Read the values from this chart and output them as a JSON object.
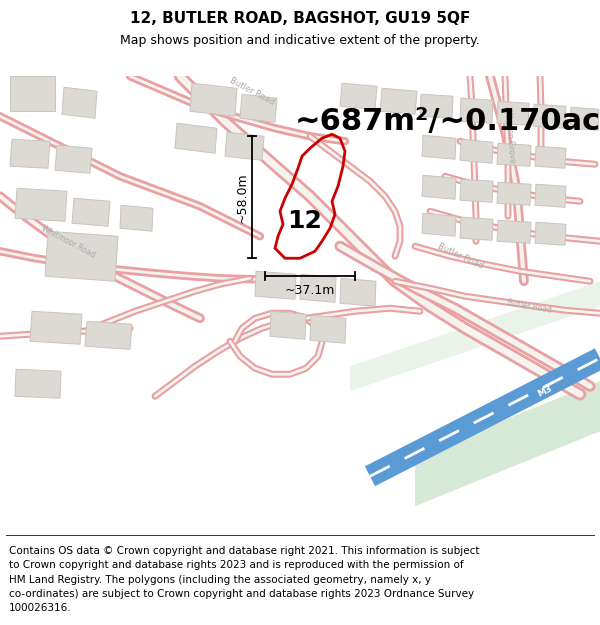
{
  "title_line1": "12, BUTLER ROAD, BAGSHOT, GU19 5QF",
  "title_line2": "Map shows position and indicative extent of the property.",
  "area_text": "~687m²/~0.170ac.",
  "label_number": "12",
  "dim_vertical": "~58.0m",
  "dim_horizontal": "~37.1m",
  "footer_lines": [
    "Contains OS data © Crown copyright and database right 2021. This information is subject",
    "to Crown copyright and database rights 2023 and is reproduced with the permission of",
    "HM Land Registry. The polygons (including the associated geometry, namely x, y",
    "co-ordinates) are subject to Crown copyright and database rights 2023 Ordnance Survey",
    "100026316."
  ],
  "map_bg": "#f5f3f0",
  "road_color": "#e8a0a0",
  "road_outline": "#f5f3f0",
  "building_color": "#dddad5",
  "building_edge": "#c8c4be",
  "highlight_color": "#cc0000",
  "motorway_color": "#5b9bd5",
  "motorway_stripe": "#ffffff",
  "green_color": "#d6e8d6",
  "text_road_color": "#aaaaaa",
  "title_fontsize": 11,
  "subtitle_fontsize": 9,
  "area_fontsize": 22,
  "label_fontsize": 18,
  "footer_fontsize": 7.5,
  "dim_fontsize": 9
}
